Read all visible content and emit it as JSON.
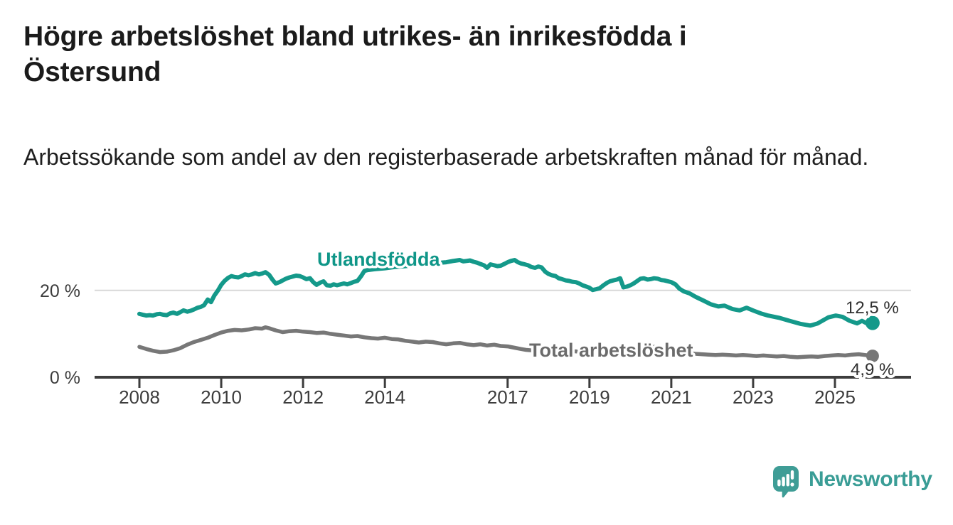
{
  "header": {
    "title": "Högre arbetslöshet bland utrikes- än inrikesfödda i Östersund",
    "subtitle": "Arbetssökande som andel av den registerbaserade arbetskraften månad för månad."
  },
  "branding": {
    "logo_text": "Newsworthy",
    "logo_icon": "bar-chart-speech-bubble-icon",
    "logo_color": "#3a9d96"
  },
  "chart_data": {
    "type": "line",
    "unit": "%",
    "title": "Högre arbetslöshet bland utrikes- än inrikesfödda i Östersund",
    "xlabel": "",
    "ylabel": "",
    "x_axis": {
      "ticks": [
        2008,
        2010,
        2012,
        2014,
        2017,
        2019,
        2021,
        2023,
        2025
      ],
      "range": [
        2008.0,
        2025.92
      ]
    },
    "y_axis": {
      "ticks": [
        {
          "value": 0,
          "label": "0 %"
        },
        {
          "value": 20,
          "label": "20 %"
        }
      ],
      "gridlines": [
        20
      ],
      "range_shown": [
        0,
        28
      ]
    },
    "grid": "horizontal-only",
    "legend_position": "inline-labels",
    "series": [
      {
        "name": "Utlandsfödda",
        "color": "#14998a",
        "label_color": "#0f9688",
        "end_label": "12,5 %",
        "end_value": 12.5,
        "points": [
          [
            2008.0,
            14.6
          ],
          [
            2008.08,
            14.4
          ],
          [
            2008.17,
            14.2
          ],
          [
            2008.25,
            14.3
          ],
          [
            2008.33,
            14.2
          ],
          [
            2008.42,
            14.5
          ],
          [
            2008.5,
            14.6
          ],
          [
            2008.58,
            14.4
          ],
          [
            2008.67,
            14.3
          ],
          [
            2008.75,
            14.7
          ],
          [
            2008.83,
            14.9
          ],
          [
            2008.92,
            14.6
          ],
          [
            2009.0,
            15.0
          ],
          [
            2009.08,
            15.4
          ],
          [
            2009.17,
            15.1
          ],
          [
            2009.25,
            15.3
          ],
          [
            2009.33,
            15.6
          ],
          [
            2009.42,
            16.0
          ],
          [
            2009.5,
            16.2
          ],
          [
            2009.58,
            16.6
          ],
          [
            2009.67,
            17.9
          ],
          [
            2009.75,
            17.3
          ],
          [
            2009.83,
            18.8
          ],
          [
            2009.92,
            20.0
          ],
          [
            2010.0,
            21.3
          ],
          [
            2010.08,
            22.2
          ],
          [
            2010.17,
            22.9
          ],
          [
            2010.25,
            23.3
          ],
          [
            2010.33,
            23.1
          ],
          [
            2010.42,
            23.0
          ],
          [
            2010.5,
            23.3
          ],
          [
            2010.58,
            23.7
          ],
          [
            2010.67,
            23.5
          ],
          [
            2010.75,
            23.7
          ],
          [
            2010.83,
            24.0
          ],
          [
            2010.92,
            23.7
          ],
          [
            2011.0,
            23.9
          ],
          [
            2011.08,
            24.2
          ],
          [
            2011.17,
            23.6
          ],
          [
            2011.25,
            22.5
          ],
          [
            2011.33,
            21.6
          ],
          [
            2011.42,
            21.9
          ],
          [
            2011.5,
            22.3
          ],
          [
            2011.58,
            22.7
          ],
          [
            2011.67,
            23.0
          ],
          [
            2011.75,
            23.2
          ],
          [
            2011.83,
            23.4
          ],
          [
            2011.92,
            23.3
          ],
          [
            2012.0,
            23.0
          ],
          [
            2012.08,
            22.6
          ],
          [
            2012.17,
            22.8
          ],
          [
            2012.25,
            21.9
          ],
          [
            2012.33,
            21.3
          ],
          [
            2012.42,
            21.8
          ],
          [
            2012.5,
            22.1
          ],
          [
            2012.58,
            21.2
          ],
          [
            2012.67,
            21.1
          ],
          [
            2012.75,
            21.4
          ],
          [
            2012.83,
            21.2
          ],
          [
            2012.92,
            21.4
          ],
          [
            2013.0,
            21.6
          ],
          [
            2013.08,
            21.4
          ],
          [
            2013.17,
            21.7
          ],
          [
            2013.25,
            22.0
          ],
          [
            2013.33,
            22.2
          ],
          [
            2013.42,
            23.3
          ],
          [
            2013.5,
            24.5
          ],
          [
            2013.58,
            24.7
          ],
          [
            2013.75,
            24.9
          ],
          [
            2014.0,
            25.1
          ],
          [
            2014.25,
            25.4
          ],
          [
            2014.5,
            25.6
          ],
          [
            2014.75,
            25.9
          ],
          [
            2015.0,
            26.1
          ],
          [
            2015.25,
            26.3
          ],
          [
            2015.5,
            26.5
          ],
          [
            2015.67,
            26.8
          ],
          [
            2015.83,
            27.0
          ],
          [
            2015.92,
            26.7
          ],
          [
            2016.0,
            26.8
          ],
          [
            2016.08,
            26.9
          ],
          [
            2016.17,
            26.6
          ],
          [
            2016.25,
            26.4
          ],
          [
            2016.33,
            26.1
          ],
          [
            2016.42,
            25.8
          ],
          [
            2016.5,
            25.2
          ],
          [
            2016.58,
            26.0
          ],
          [
            2016.67,
            25.8
          ],
          [
            2016.75,
            25.6
          ],
          [
            2016.83,
            25.7
          ],
          [
            2016.92,
            26.1
          ],
          [
            2017.0,
            26.5
          ],
          [
            2017.08,
            26.8
          ],
          [
            2017.17,
            27.0
          ],
          [
            2017.25,
            26.5
          ],
          [
            2017.33,
            26.2
          ],
          [
            2017.42,
            26.0
          ],
          [
            2017.5,
            25.8
          ],
          [
            2017.58,
            25.4
          ],
          [
            2017.67,
            25.2
          ],
          [
            2017.75,
            25.5
          ],
          [
            2017.83,
            25.3
          ],
          [
            2017.92,
            24.3
          ],
          [
            2018.0,
            23.8
          ],
          [
            2018.08,
            23.5
          ],
          [
            2018.17,
            23.3
          ],
          [
            2018.25,
            22.8
          ],
          [
            2018.33,
            22.6
          ],
          [
            2018.42,
            22.3
          ],
          [
            2018.5,
            22.2
          ],
          [
            2018.58,
            22.0
          ],
          [
            2018.67,
            21.9
          ],
          [
            2018.75,
            21.6
          ],
          [
            2018.83,
            21.2
          ],
          [
            2018.92,
            20.9
          ],
          [
            2019.0,
            20.6
          ],
          [
            2019.08,
            20.1
          ],
          [
            2019.17,
            20.3
          ],
          [
            2019.25,
            20.5
          ],
          [
            2019.33,
            21.1
          ],
          [
            2019.42,
            21.7
          ],
          [
            2019.5,
            22.1
          ],
          [
            2019.58,
            22.3
          ],
          [
            2019.67,
            22.5
          ],
          [
            2019.75,
            22.8
          ],
          [
            2019.83,
            20.7
          ],
          [
            2019.92,
            20.9
          ],
          [
            2020.0,
            21.2
          ],
          [
            2020.08,
            21.6
          ],
          [
            2020.17,
            22.2
          ],
          [
            2020.25,
            22.7
          ],
          [
            2020.33,
            22.8
          ],
          [
            2020.42,
            22.5
          ],
          [
            2020.5,
            22.6
          ],
          [
            2020.58,
            22.8
          ],
          [
            2020.67,
            22.7
          ],
          [
            2020.75,
            22.4
          ],
          [
            2020.83,
            22.3
          ],
          [
            2020.92,
            22.1
          ],
          [
            2021.0,
            21.9
          ],
          [
            2021.1,
            21.4
          ],
          [
            2021.2,
            20.4
          ],
          [
            2021.3,
            19.8
          ],
          [
            2021.45,
            19.3
          ],
          [
            2021.6,
            18.5
          ],
          [
            2021.8,
            17.6
          ],
          [
            2021.97,
            16.8
          ],
          [
            2022.15,
            16.3
          ],
          [
            2022.3,
            16.5
          ],
          [
            2022.5,
            15.7
          ],
          [
            2022.67,
            15.4
          ],
          [
            2022.84,
            16.0
          ],
          [
            2023.02,
            15.3
          ],
          [
            2023.19,
            14.7
          ],
          [
            2023.37,
            14.2
          ],
          [
            2023.63,
            13.7
          ],
          [
            2023.89,
            13.0
          ],
          [
            2024.15,
            12.3
          ],
          [
            2024.4,
            11.9
          ],
          [
            2024.58,
            12.4
          ],
          [
            2024.84,
            13.8
          ],
          [
            2025.02,
            14.2
          ],
          [
            2025.19,
            13.9
          ],
          [
            2025.36,
            13.0
          ],
          [
            2025.54,
            12.4
          ],
          [
            2025.66,
            13.0
          ],
          [
            2025.8,
            12.3
          ],
          [
            2025.92,
            12.5
          ]
        ]
      },
      {
        "name": "Total arbetslöshet",
        "color": "#777777",
        "label_color": "#6b6b6b",
        "end_label": "4,9 %",
        "end_value": 4.9,
        "points": [
          [
            2008.0,
            7.0
          ],
          [
            2008.17,
            6.5
          ],
          [
            2008.33,
            6.1
          ],
          [
            2008.5,
            5.8
          ],
          [
            2008.67,
            5.9
          ],
          [
            2008.83,
            6.2
          ],
          [
            2009.0,
            6.7
          ],
          [
            2009.17,
            7.5
          ],
          [
            2009.33,
            8.1
          ],
          [
            2009.5,
            8.6
          ],
          [
            2009.67,
            9.1
          ],
          [
            2009.83,
            9.7
          ],
          [
            2010.0,
            10.3
          ],
          [
            2010.17,
            10.7
          ],
          [
            2010.33,
            10.9
          ],
          [
            2010.5,
            10.8
          ],
          [
            2010.67,
            11.0
          ],
          [
            2010.83,
            11.3
          ],
          [
            2011.0,
            11.2
          ],
          [
            2011.08,
            11.5
          ],
          [
            2011.17,
            11.3
          ],
          [
            2011.33,
            10.8
          ],
          [
            2011.5,
            10.4
          ],
          [
            2011.67,
            10.6
          ],
          [
            2011.83,
            10.7
          ],
          [
            2012.0,
            10.5
          ],
          [
            2012.17,
            10.4
          ],
          [
            2012.33,
            10.2
          ],
          [
            2012.5,
            10.3
          ],
          [
            2012.67,
            10.0
          ],
          [
            2012.83,
            9.8
          ],
          [
            2013.0,
            9.6
          ],
          [
            2013.17,
            9.4
          ],
          [
            2013.33,
            9.5
          ],
          [
            2013.5,
            9.2
          ],
          [
            2013.67,
            9.0
          ],
          [
            2013.83,
            8.9
          ],
          [
            2014.0,
            9.1
          ],
          [
            2014.17,
            8.8
          ],
          [
            2014.33,
            8.7
          ],
          [
            2014.5,
            8.4
          ],
          [
            2014.67,
            8.2
          ],
          [
            2014.83,
            8.0
          ],
          [
            2015.0,
            8.2
          ],
          [
            2015.17,
            8.1
          ],
          [
            2015.33,
            7.8
          ],
          [
            2015.5,
            7.6
          ],
          [
            2015.67,
            7.8
          ],
          [
            2015.83,
            7.9
          ],
          [
            2016.0,
            7.6
          ],
          [
            2016.17,
            7.4
          ],
          [
            2016.33,
            7.6
          ],
          [
            2016.5,
            7.3
          ],
          [
            2016.67,
            7.5
          ],
          [
            2016.83,
            7.2
          ],
          [
            2017.0,
            7.1
          ],
          [
            2017.17,
            6.8
          ],
          [
            2017.33,
            6.5
          ],
          [
            2017.45,
            6.3
          ],
          [
            2017.58,
            6.2
          ],
          [
            2017.75,
            6.1
          ],
          [
            2017.92,
            6.2
          ],
          [
            2018.08,
            6.1
          ],
          [
            2018.25,
            6.0
          ],
          [
            2018.42,
            6.1
          ],
          [
            2018.58,
            6.0
          ],
          [
            2018.75,
            5.9
          ],
          [
            2018.92,
            6.0
          ],
          [
            2019.08,
            5.9
          ],
          [
            2019.25,
            5.8
          ],
          [
            2019.42,
            5.9
          ],
          [
            2019.58,
            5.8
          ],
          [
            2019.75,
            5.7
          ],
          [
            2019.92,
            5.9
          ],
          [
            2020.08,
            6.3
          ],
          [
            2020.25,
            6.8
          ],
          [
            2020.42,
            7.1
          ],
          [
            2020.58,
            7.0
          ],
          [
            2020.75,
            6.8
          ],
          [
            2020.92,
            6.5
          ],
          [
            2021.08,
            6.2
          ],
          [
            2021.25,
            5.9
          ],
          [
            2021.42,
            5.6
          ],
          [
            2021.58,
            5.4
          ],
          [
            2021.75,
            5.3
          ],
          [
            2021.92,
            5.2
          ],
          [
            2022.08,
            5.1
          ],
          [
            2022.25,
            5.2
          ],
          [
            2022.42,
            5.1
          ],
          [
            2022.58,
            5.0
          ],
          [
            2022.75,
            5.1
          ],
          [
            2022.92,
            5.0
          ],
          [
            2023.08,
            4.9
          ],
          [
            2023.25,
            5.0
          ],
          [
            2023.42,
            4.9
          ],
          [
            2023.58,
            4.8
          ],
          [
            2023.75,
            4.9
          ],
          [
            2023.92,
            4.7
          ],
          [
            2024.08,
            4.6
          ],
          [
            2024.25,
            4.7
          ],
          [
            2024.42,
            4.8
          ],
          [
            2024.58,
            4.7
          ],
          [
            2024.75,
            4.9
          ],
          [
            2024.92,
            5.0
          ],
          [
            2025.08,
            5.1
          ],
          [
            2025.25,
            5.0
          ],
          [
            2025.42,
            5.2
          ],
          [
            2025.58,
            5.3
          ],
          [
            2025.75,
            5.1
          ],
          [
            2025.92,
            4.9
          ]
        ]
      }
    ]
  }
}
